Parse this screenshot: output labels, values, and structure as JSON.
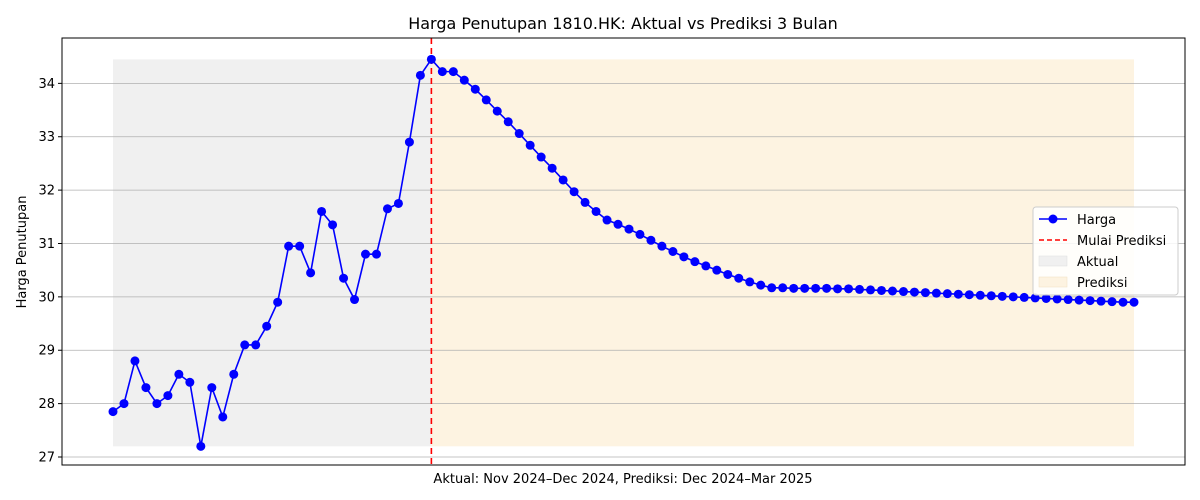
{
  "chart_data": {
    "type": "line",
    "title": "Harga Penutupan 1810.HK: Aktual vs Prediksi 3 Bulan",
    "xlabel": "Aktual: Nov 2024–Dec 2024, Prediksi: Dec 2024–Mar 2025",
    "ylabel": "Harga Penutupan",
    "ylim": [
      26.85,
      34.85
    ],
    "yticks": [
      27,
      28,
      29,
      30,
      31,
      32,
      33,
      34
    ],
    "grid": "horizontal",
    "legend_position": "right",
    "legend": [
      "Harga",
      "Mulai Prediksi",
      "Aktual",
      "Prediksi"
    ],
    "x_start_index": 0,
    "prediction_start_index": 29,
    "x_end_index": 93,
    "series": [
      {
        "name": "Harga",
        "color": "#0000ff",
        "values": [
          27.85,
          28.0,
          28.8,
          28.3,
          28.0,
          28.15,
          28.55,
          28.4,
          27.2,
          28.3,
          27.75,
          28.55,
          29.1,
          29.1,
          29.45,
          29.9,
          30.95,
          30.95,
          30.45,
          31.6,
          31.35,
          30.35,
          29.95,
          30.8,
          30.8,
          31.65,
          31.75,
          32.9,
          34.15,
          34.45,
          34.22,
          34.22,
          34.06,
          33.89,
          33.69,
          33.48,
          33.28,
          33.06,
          32.84,
          32.62,
          32.41,
          32.19,
          31.97,
          31.77,
          31.6,
          31.44,
          31.36,
          31.27,
          31.17,
          31.06,
          30.95,
          30.85,
          30.75,
          30.66,
          30.58,
          30.5,
          30.42,
          30.35,
          30.28,
          30.22,
          30.17,
          30.17,
          30.16,
          30.16,
          30.16,
          30.16,
          30.15,
          30.15,
          30.14,
          30.13,
          30.12,
          30.11,
          30.1,
          30.09,
          30.08,
          30.07,
          30.06,
          30.05,
          30.04,
          30.03,
          30.02,
          30.01,
          30.0,
          29.99,
          29.98,
          29.97,
          29.96,
          29.95,
          29.94,
          29.93,
          29.92,
          29.91,
          29.9,
          29.9
        ]
      }
    ],
    "reference_line": {
      "name": "Mulai Prediksi",
      "color": "#ff0000",
      "style": "dashed"
    },
    "regions": [
      {
        "name": "Aktual",
        "color": "#f0f0f0"
      },
      {
        "name": "Prediksi",
        "color": "#fdf3e1"
      }
    ]
  }
}
